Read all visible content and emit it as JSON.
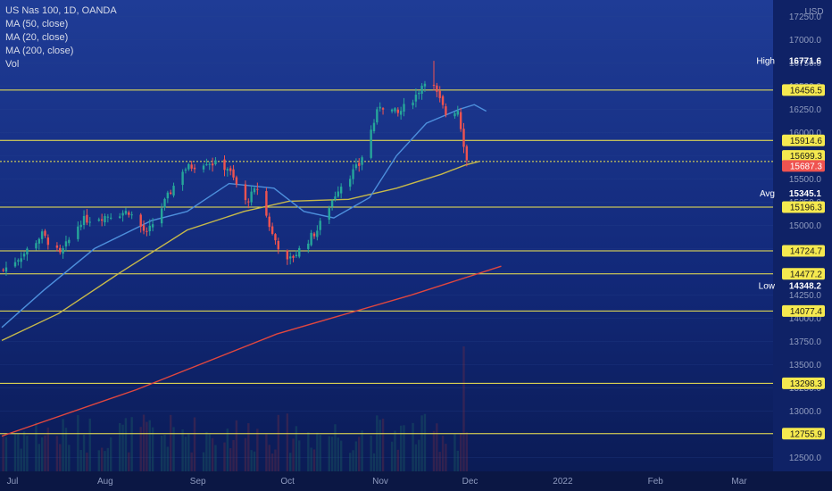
{
  "legend": {
    "title": "US Nas 100, 1D, OANDA",
    "studies": [
      "MA (50, close)",
      "MA (20, close)",
      "MA (200, close)",
      "Vol"
    ]
  },
  "chart_data": {
    "type": "candlestick",
    "currency": "USD",
    "x_ticks": [
      "Jul",
      "Aug",
      "Sep",
      "Oct",
      "Nov",
      "Dec",
      "2022",
      "Feb",
      "Mar"
    ],
    "y_ticks": [
      12500,
      12750,
      13000,
      13250,
      13500,
      13750,
      14000,
      14250,
      14500,
      14750,
      15000,
      15250,
      15500,
      15750,
      16000,
      16250,
      16500,
      16750,
      17000,
      17250
    ],
    "y_tick_labels": [
      "12500.0",
      "12750.0",
      "13000.0",
      "13250.0",
      "13500.0",
      "13750.0",
      "14000.0",
      "14250.0",
      "14500.0",
      "14750.0",
      "15000.0",
      "15250.0",
      "15500.0",
      "15750.0",
      "16000.0",
      "16250.0",
      "16500.0",
      "16750.0",
      "17000.0",
      "17250.0"
    ],
    "ylim": [
      12350,
      17350
    ],
    "horizontal_levels": [
      {
        "label": "16456.5",
        "value": 16456.5
      },
      {
        "label": "15914.6",
        "value": 15914.6
      },
      {
        "label": "15687.3",
        "value": 15687.3
      },
      {
        "label": "15196.3",
        "value": 15196.3
      },
      {
        "label": "14724.7",
        "value": 14724.7
      },
      {
        "label": "14477.2",
        "value": 14477.2
      },
      {
        "label": "14077.4",
        "value": 14077.4
      },
      {
        "label": "13298.3",
        "value": 13298.3
      },
      {
        "label": "12755.9",
        "value": 12755.9
      }
    ],
    "price_tags": [
      {
        "label": "16456.5",
        "value": 16456.5,
        "style": "yellow"
      },
      {
        "label": "15914.6",
        "value": 15914.6,
        "style": "yellow"
      },
      {
        "label": "15699.3",
        "value": 15699.3,
        "style": "yellow"
      },
      {
        "label": "15687.3",
        "value": 15687.3,
        "style": "red"
      },
      {
        "label": "15196.3",
        "value": 15196.3,
        "style": "yellow"
      },
      {
        "label": "14724.7",
        "value": 14724.7,
        "style": "yellow"
      },
      {
        "label": "14477.2",
        "value": 14477.2,
        "style": "yellow"
      },
      {
        "label": "14077.4",
        "value": 14077.4,
        "style": "yellow"
      },
      {
        "label": "13298.3",
        "value": 13298.3,
        "style": "yellow"
      },
      {
        "label": "12755.9",
        "value": 12755.9,
        "style": "yellow"
      }
    ],
    "stats": [
      {
        "name": "High",
        "label": "16771.6",
        "value": 16771.6
      },
      {
        "name": "Avg",
        "label": "15345.1",
        "value": 15345.1
      },
      {
        "name": "Low",
        "label": "14348.2",
        "value": 14348.2
      }
    ],
    "price_keypoints": [
      [
        "2021-07-01",
        14520
      ],
      [
        "2021-07-08",
        14700
      ],
      [
        "2021-07-14",
        14900
      ],
      [
        "2021-07-20",
        14680
      ],
      [
        "2021-07-27",
        15050
      ],
      [
        "2021-08-04",
        15100
      ],
      [
        "2021-08-12",
        15150
      ],
      [
        "2021-08-18",
        14900
      ],
      [
        "2021-08-24",
        15250
      ],
      [
        "2021-08-30",
        15600
      ],
      [
        "2021-09-07",
        15690
      ],
      [
        "2021-09-14",
        15620
      ],
      [
        "2021-09-20",
        15250
      ],
      [
        "2021-09-24",
        15400
      ],
      [
        "2021-09-29",
        14900
      ],
      [
        "2021-10-04",
        14600
      ],
      [
        "2021-10-07",
        14700
      ],
      [
        "2021-10-14",
        14950
      ],
      [
        "2021-10-21",
        15400
      ],
      [
        "2021-10-28",
        15650
      ],
      [
        "2021-11-04",
        16300
      ],
      [
        "2021-11-10",
        16200
      ],
      [
        "2021-11-16",
        16400
      ],
      [
        "2021-11-19",
        16570
      ],
      [
        "2021-11-22",
        16480
      ],
      [
        "2021-11-26",
        16200
      ],
      [
        "2021-11-30",
        16250
      ],
      [
        "2021-12-03",
        15700
      ]
    ],
    "ma20_keypoints": [
      [
        "2021-07-01",
        13900
      ],
      [
        "2021-07-15",
        14300
      ],
      [
        "2021-08-01",
        14750
      ],
      [
        "2021-08-20",
        15050
      ],
      [
        "2021-09-01",
        15150
      ],
      [
        "2021-09-15",
        15450
      ],
      [
        "2021-09-30",
        15400
      ],
      [
        "2021-10-10",
        15150
      ],
      [
        "2021-10-20",
        15080
      ],
      [
        "2021-11-01",
        15300
      ],
      [
        "2021-11-10",
        15750
      ],
      [
        "2021-11-20",
        16100
      ],
      [
        "2021-12-01",
        16250
      ],
      [
        "2021-12-06",
        16300
      ],
      [
        "2021-12-10",
        16230
      ]
    ],
    "ma50_keypoints": [
      [
        "2021-07-01",
        13760
      ],
      [
        "2021-07-20",
        14050
      ],
      [
        "2021-08-10",
        14500
      ],
      [
        "2021-09-01",
        14950
      ],
      [
        "2021-09-20",
        15150
      ],
      [
        "2021-10-05",
        15260
      ],
      [
        "2021-10-25",
        15280
      ],
      [
        "2021-11-10",
        15400
      ],
      [
        "2021-11-25",
        15550
      ],
      [
        "2021-12-03",
        15650
      ],
      [
        "2021-12-08",
        15690
      ]
    ],
    "ma200_keypoints": [
      [
        "2021-07-01",
        12730
      ],
      [
        "2021-08-15",
        13230
      ],
      [
        "2021-10-01",
        13830
      ],
      [
        "2021-11-15",
        14250
      ],
      [
        "2021-12-15",
        14560
      ]
    ],
    "high_date": "2021-11-22",
    "volume_peak_date": "2021-12-02"
  }
}
